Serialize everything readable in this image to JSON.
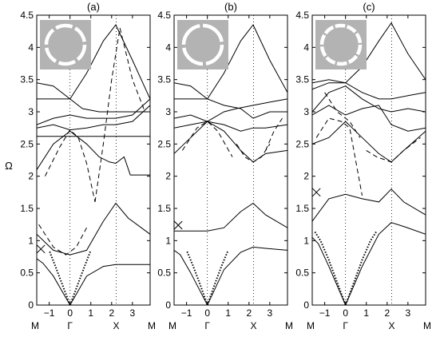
{
  "figure": {
    "ylabel": "Ω"
  },
  "chart_data": [
    {
      "type": "line",
      "title": "(a)",
      "xlabel": "",
      "ylabel": "Ω",
      "xlim": [
        -1.6,
        3.85
      ],
      "ylim": [
        0,
        4.5
      ],
      "x_ticks": [
        -1,
        0,
        1,
        2,
        3
      ],
      "x_tick_labels": [
        "−1",
        "0",
        "1",
        "2",
        "3"
      ],
      "y_ticks": [
        0,
        0.5,
        1,
        1.5,
        2,
        2.5,
        3,
        3.5,
        4,
        4.5
      ],
      "y_tick_labels": [
        "0",
        "0.5",
        "1",
        "1.5",
        "2",
        "2.5",
        "3",
        "3.5",
        "4",
        "4.5"
      ],
      "symmetry_points": [
        {
          "label": "M",
          "x": -1.6
        },
        {
          "label": "Γ",
          "x": 0
        },
        {
          "label": "X",
          "x": 2.22
        },
        {
          "label": "M",
          "x": 3.85
        }
      ],
      "grid": false,
      "inset": {
        "kind": "ring",
        "gap_count": 6
      },
      "marker": {
        "symbol": "x",
        "x": -1.4,
        "y": 0.87
      },
      "series": [
        {
          "style": "solid",
          "x": [
            0,
            0.8,
            1.6,
            2.2,
            2.8,
            3.85
          ],
          "y": [
            0,
            0.45,
            0.6,
            0.63,
            0.63,
            0.63
          ]
        },
        {
          "style": "solid",
          "x": [
            0,
            -0.8,
            -1.3,
            -1.6
          ],
          "y": [
            0,
            0.45,
            0.65,
            0.72
          ]
        },
        {
          "style": "solid",
          "x": [
            -1.6,
            -0.8,
            0,
            0.8,
            1.6,
            2.2,
            2.8,
            3.85
          ],
          "y": [
            1.1,
            0.85,
            0.78,
            0.85,
            1.3,
            1.58,
            1.35,
            1.1
          ]
        },
        {
          "style": "solid",
          "x": [
            -1.6,
            -0.8,
            0,
            0.8,
            1.4,
            1.9,
            2.2,
            2.6,
            2.9,
            3.85
          ],
          "y": [
            2.1,
            2.5,
            2.7,
            2.5,
            2.3,
            2.22,
            2.2,
            2.3,
            2.02,
            2.02
          ]
        },
        {
          "style": "solid",
          "x": [
            -1.6,
            3.85
          ],
          "y": [
            2.62,
            2.62
          ]
        },
        {
          "style": "solid",
          "x": [
            -1.6,
            -0.8,
            0,
            0.8,
            1.6,
            2.2,
            3,
            3.85
          ],
          "y": [
            2.75,
            2.8,
            2.72,
            2.75,
            2.8,
            2.8,
            2.85,
            3.1
          ]
        },
        {
          "style": "solid",
          "x": [
            -1.6,
            -0.8,
            0,
            0.8,
            1.6,
            2.2,
            3,
            3.85
          ],
          "y": [
            2.8,
            2.9,
            2.95,
            2.9,
            2.9,
            2.9,
            2.95,
            3.2
          ]
        },
        {
          "style": "solid",
          "x": [
            -1.6,
            0,
            0.6,
            1.4,
            3.85
          ],
          "y": [
            3.2,
            3.2,
            3.05,
            3.0,
            3.0
          ]
        },
        {
          "style": "solid",
          "x": [
            -1.6,
            -0.8,
            0,
            0.8,
            1.6,
            2.2,
            3,
            3.85
          ],
          "y": [
            3.45,
            3.4,
            3.2,
            3.6,
            4.1,
            4.35,
            3.8,
            3.2
          ]
        },
        {
          "style": "dashed",
          "x": [
            -1.5,
            -0.8,
            -0.2,
            0.3,
            0.8
          ],
          "y": [
            1.25,
            0.9,
            0.78,
            0.9,
            1.2
          ]
        },
        {
          "style": "dashed",
          "x": [
            -1.2,
            -0.5,
            0,
            0.4,
            0.8,
            1.2
          ],
          "y": [
            2.0,
            2.45,
            2.72,
            2.6,
            2.2,
            1.6
          ]
        },
        {
          "style": "dashed",
          "x": [
            1.2,
            1.6,
            2.0,
            2.4,
            3.0,
            3.6
          ],
          "y": [
            1.6,
            2.5,
            3.5,
            4.3,
            3.5,
            3.0
          ]
        },
        {
          "style": "dotted",
          "x": [
            0,
            0.35,
            0.7,
            1.0
          ],
          "y": [
            0,
            0.3,
            0.6,
            0.85
          ]
        },
        {
          "style": "dotted",
          "x": [
            0,
            -0.35,
            -0.7,
            -1.0
          ],
          "y": [
            0,
            0.3,
            0.6,
            0.85
          ]
        }
      ]
    },
    {
      "type": "line",
      "title": "(b)",
      "xlabel": "",
      "ylabel": "",
      "xlim": [
        -1.6,
        3.85
      ],
      "ylim": [
        0,
        4.5
      ],
      "x_ticks": [
        -1,
        0,
        1,
        2,
        3
      ],
      "x_tick_labels": [
        "−1",
        "0",
        "1",
        "2",
        "3"
      ],
      "y_ticks": [
        0,
        0.5,
        1,
        1.5,
        2,
        2.5,
        3,
        3.5,
        4,
        4.5
      ],
      "y_tick_labels": [
        "0",
        "0.5",
        "1",
        "1.5",
        "2",
        "2.5",
        "3",
        "3.5",
        "4",
        "4.5"
      ],
      "symmetry_points": [
        {
          "label": "M",
          "x": -1.6
        },
        {
          "label": "Γ",
          "x": 0
        },
        {
          "label": "X",
          "x": 2.22
        },
        {
          "label": "M",
          "x": 3.85
        }
      ],
      "grid": false,
      "inset": {
        "kind": "ring",
        "gap_count": 4
      },
      "marker": {
        "symbol": "x",
        "x": -1.4,
        "y": 1.24
      },
      "series": [
        {
          "style": "solid",
          "x": [
            0,
            0.8,
            1.6,
            2.2,
            2.8,
            3.85
          ],
          "y": [
            0,
            0.55,
            0.82,
            0.9,
            0.88,
            0.85
          ]
        },
        {
          "style": "solid",
          "x": [
            0,
            -0.8,
            -1.3,
            -1.6
          ],
          "y": [
            0,
            0.5,
            0.78,
            0.85
          ]
        },
        {
          "style": "solid",
          "x": [
            -1.6,
            0,
            0.8,
            1.6,
            2.2,
            2.8,
            3.85
          ],
          "y": [
            1.15,
            1.15,
            1.2,
            1.45,
            1.58,
            1.4,
            1.2
          ]
        },
        {
          "style": "solid",
          "x": [
            -1.6,
            -0.8,
            0,
            0.8,
            1.6,
            2.2,
            2.8,
            3.85
          ],
          "y": [
            2.35,
            2.6,
            2.85,
            2.7,
            2.4,
            2.22,
            2.35,
            2.4
          ]
        },
        {
          "style": "solid",
          "x": [
            -1.6,
            -0.8,
            0,
            0.8,
            1.6,
            2.2,
            2.8,
            3.85
          ],
          "y": [
            2.75,
            2.8,
            2.85,
            2.8,
            2.7,
            2.75,
            2.75,
            2.8
          ]
        },
        {
          "style": "solid",
          "x": [
            -1.6,
            -0.8,
            0,
            0.8,
            1.4,
            2.2,
            3,
            3.85
          ],
          "y": [
            2.9,
            2.95,
            2.85,
            3.0,
            3.05,
            3.1,
            3.15,
            3.2
          ]
        },
        {
          "style": "solid",
          "x": [
            -1.6,
            0,
            0.8,
            1.6,
            2.2,
            3,
            3.85
          ],
          "y": [
            3.2,
            3.2,
            3.1,
            3.05,
            2.9,
            3.0,
            3.0
          ]
        },
        {
          "style": "solid",
          "x": [
            -1.6,
            -0.8,
            0,
            0.8,
            1.6,
            2.2,
            3,
            3.85
          ],
          "y": [
            3.45,
            3.4,
            3.2,
            3.6,
            4.1,
            4.35,
            3.8,
            3.3
          ]
        },
        {
          "style": "dashed",
          "x": [
            -1.2,
            -0.5,
            0,
            0.5,
            1.2
          ],
          "y": [
            2.4,
            2.75,
            2.85,
            2.7,
            2.3
          ]
        },
        {
          "style": "dashed",
          "x": [
            1.4,
            1.8,
            2.2,
            2.6,
            3.0
          ],
          "y": [
            2.5,
            2.3,
            2.22,
            2.3,
            2.5
          ]
        },
        {
          "style": "dashed",
          "x": [
            2.8,
            3.2,
            3.6
          ],
          "y": [
            2.4,
            2.7,
            2.9
          ]
        },
        {
          "style": "dotted",
          "x": [
            0,
            0.35,
            0.7,
            1.0
          ],
          "y": [
            0,
            0.32,
            0.62,
            0.85
          ]
        },
        {
          "style": "dotted",
          "x": [
            0,
            -0.35,
            -0.7,
            -1.0
          ],
          "y": [
            0,
            0.32,
            0.62,
            0.85
          ]
        }
      ]
    },
    {
      "type": "line",
      "title": "(c)",
      "xlabel": "",
      "ylabel": "",
      "xlim": [
        -1.6,
        3.85
      ],
      "ylim": [
        0,
        4.5
      ],
      "x_ticks": [
        -1,
        0,
        1,
        2,
        3
      ],
      "x_tick_labels": [
        "−1",
        "0",
        "1",
        "2",
        "3"
      ],
      "y_ticks": [
        0,
        0.5,
        1,
        1.5,
        2,
        2.5,
        3,
        3.5,
        4,
        4.5
      ],
      "y_tick_labels": [
        "0",
        "0.5",
        "1",
        "1.5",
        "2",
        "2.5",
        "3",
        "3.5",
        "4",
        "4.5"
      ],
      "symmetry_points": [
        {
          "label": "M",
          "x": -1.6
        },
        {
          "label": "Γ",
          "x": 0
        },
        {
          "label": "X",
          "x": 2.22
        },
        {
          "label": "M",
          "x": 3.85
        }
      ],
      "grid": false,
      "inset": {
        "kind": "ring",
        "gap_count": 10
      },
      "marker": {
        "symbol": "x",
        "x": -1.4,
        "y": 1.75
      },
      "series": [
        {
          "style": "solid",
          "x": [
            0,
            0.8,
            1.6,
            2.2,
            2.8,
            3.85
          ],
          "y": [
            0,
            0.6,
            1.1,
            1.28,
            1.22,
            1.1
          ]
        },
        {
          "style": "solid",
          "x": [
            0,
            -0.8,
            -1.3,
            -1.6
          ],
          "y": [
            0,
            0.6,
            0.95,
            1.05
          ]
        },
        {
          "style": "solid",
          "x": [
            -1.6,
            -0.8,
            0,
            0.8,
            1.6,
            2.2,
            2.8,
            3.85
          ],
          "y": [
            1.3,
            1.65,
            1.72,
            1.65,
            1.6,
            1.8,
            1.6,
            1.4
          ]
        },
        {
          "style": "solid",
          "x": [
            -1.6,
            -0.8,
            0,
            0.8,
            1.6,
            2.2,
            2.8,
            3.85
          ],
          "y": [
            2.5,
            2.6,
            2.85,
            2.6,
            2.35,
            2.22,
            2.4,
            2.7
          ]
        },
        {
          "style": "solid",
          "x": [
            -1.6,
            -0.8,
            0,
            0.8,
            1.6,
            2.2,
            3,
            3.85
          ],
          "y": [
            2.95,
            3.1,
            2.95,
            3.05,
            3.1,
            2.8,
            2.7,
            2.75
          ]
        },
        {
          "style": "solid",
          "x": [
            -1.6,
            -0.8,
            0,
            0.8,
            1.6,
            2.2,
            3,
            3.85
          ],
          "y": [
            3.0,
            3.3,
            3.4,
            3.2,
            3.05,
            3.0,
            3.05,
            3.0
          ]
        },
        {
          "style": "solid",
          "x": [
            -1.6,
            -0.8,
            0,
            0.8,
            1.6,
            2.2,
            3,
            3.85
          ],
          "y": [
            3.35,
            3.45,
            3.45,
            3.3,
            3.2,
            3.2,
            3.25,
            3.3
          ]
        },
        {
          "style": "solid",
          "x": [
            -1.6,
            -0.8,
            0,
            0.8,
            1.6,
            2.2,
            3,
            3.85
          ],
          "y": [
            3.45,
            3.5,
            3.45,
            3.7,
            4.1,
            4.38,
            3.9,
            3.5
          ]
        },
        {
          "style": "dashed",
          "x": [
            -1.4,
            -0.8,
            -0.2,
            0.2,
            0.8
          ],
          "y": [
            2.6,
            2.9,
            2.85,
            2.75,
            1.7
          ]
        },
        {
          "style": "dashed",
          "x": [
            -1.0,
            -0.4,
            0.2,
            0.7
          ],
          "y": [
            3.3,
            3.0,
            2.85,
            2.6
          ]
        },
        {
          "style": "dashed",
          "x": [
            1.0,
            1.5,
            2.2,
            2.8,
            3.6
          ],
          "y": [
            2.4,
            2.3,
            2.22,
            2.4,
            2.6
          ]
        },
        {
          "style": "dotted",
          "x": [
            0,
            -0.4,
            -0.8,
            -1.2,
            -1.5
          ],
          "y": [
            0,
            0.35,
            0.7,
            1.0,
            1.15
          ]
        },
        {
          "style": "dotted",
          "x": [
            0,
            0.4,
            0.8,
            1.2,
            1.5
          ],
          "y": [
            0,
            0.35,
            0.7,
            1.0,
            1.15
          ]
        }
      ]
    }
  ]
}
